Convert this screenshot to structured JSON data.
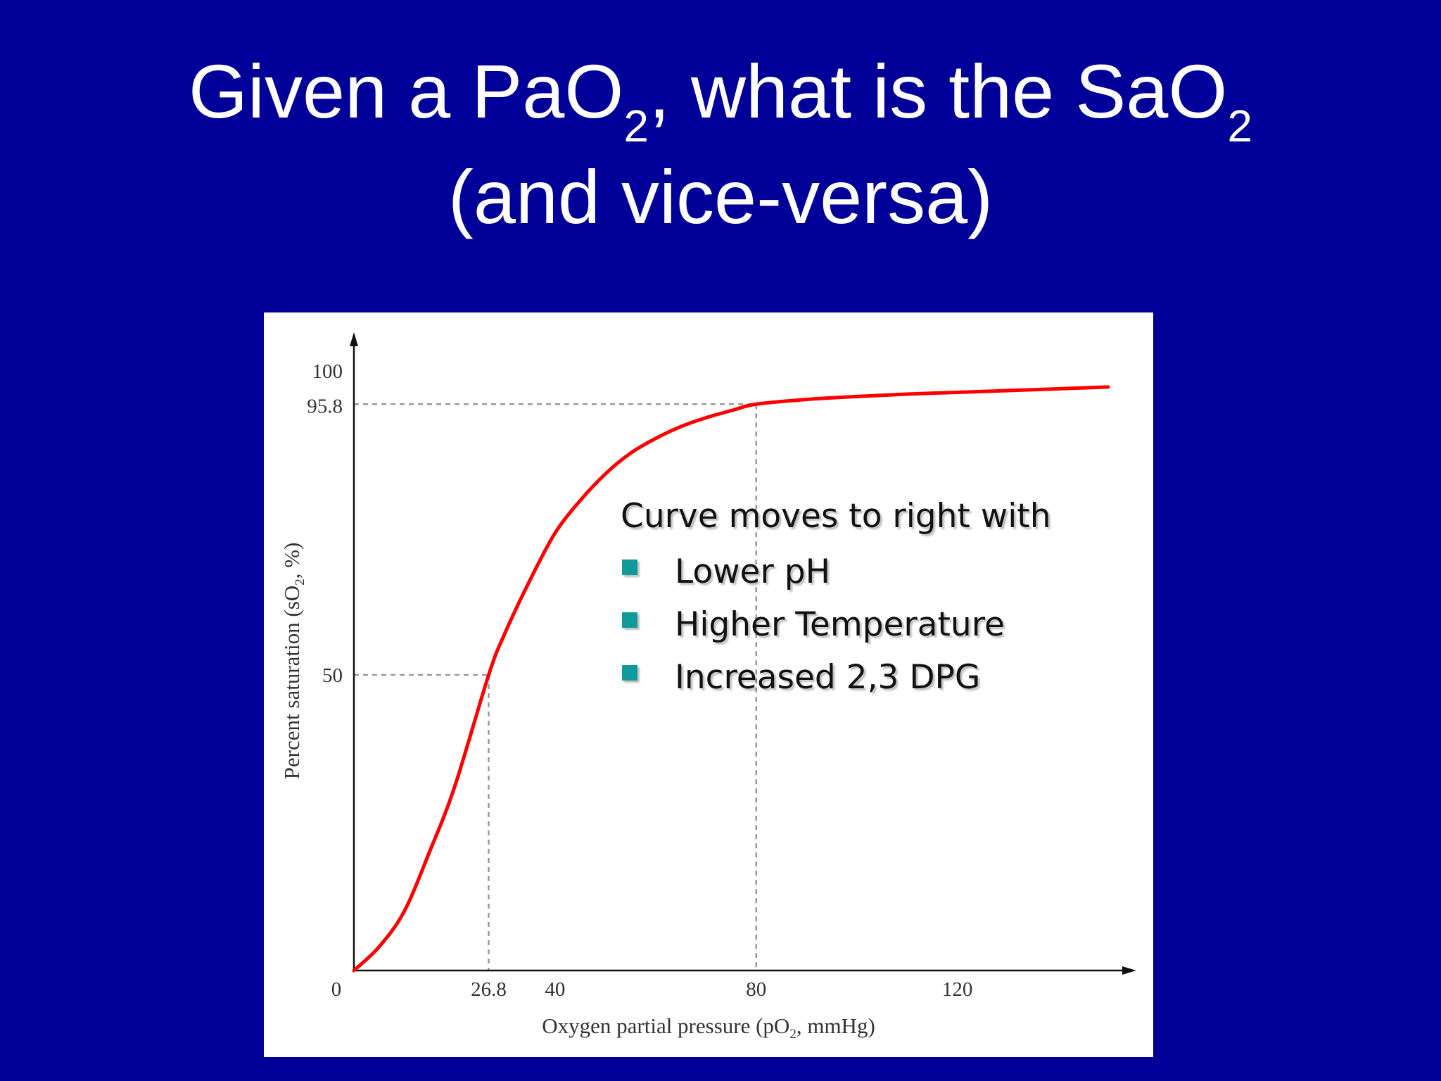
{
  "slide": {
    "title_line1_a": "Given a PaO",
    "title_line1_sub1": "2",
    "title_line1_b": ", what is the SaO",
    "title_line1_sub2": "2",
    "title_line2": "(and vice-versa)"
  },
  "annotation": {
    "heading": "Curve moves to right with",
    "items": [
      "Lower pH",
      "Higher Temperature",
      "Increased 2,3 DPG"
    ]
  },
  "colors": {
    "background": "#000099",
    "curve": "#ff0000",
    "bullet": "#109a9a"
  },
  "chart_data": {
    "type": "line",
    "xlabel": "Oxygen partial pressure (pO2, mmHg)",
    "ylabel": "Percent saturation (sO2, %)",
    "xlim": [
      0,
      150
    ],
    "ylim": [
      0,
      100
    ],
    "x_ticks": [
      0,
      26.8,
      40,
      80,
      120
    ],
    "y_ticks": [
      50,
      95.8,
      100
    ],
    "reference_points": [
      {
        "x": 26.8,
        "y": 50
      },
      {
        "x": 80,
        "y": 95.8
      }
    ],
    "series": [
      {
        "x": [
          0,
          5,
          10,
          15,
          20,
          26.8,
          30,
          35,
          40,
          45,
          50,
          55,
          60,
          65,
          70,
          75,
          80,
          90,
          100,
          110,
          120,
          130,
          140,
          150
        ],
        "y": [
          0,
          4,
          10,
          20,
          31,
          50,
          57,
          66,
          74,
          79.5,
          84,
          87.5,
          90,
          92,
          93.5,
          94.7,
          95.8,
          96.6,
          97.1,
          97.5,
          97.8,
          98.1,
          98.4,
          98.7
        ]
      }
    ]
  }
}
